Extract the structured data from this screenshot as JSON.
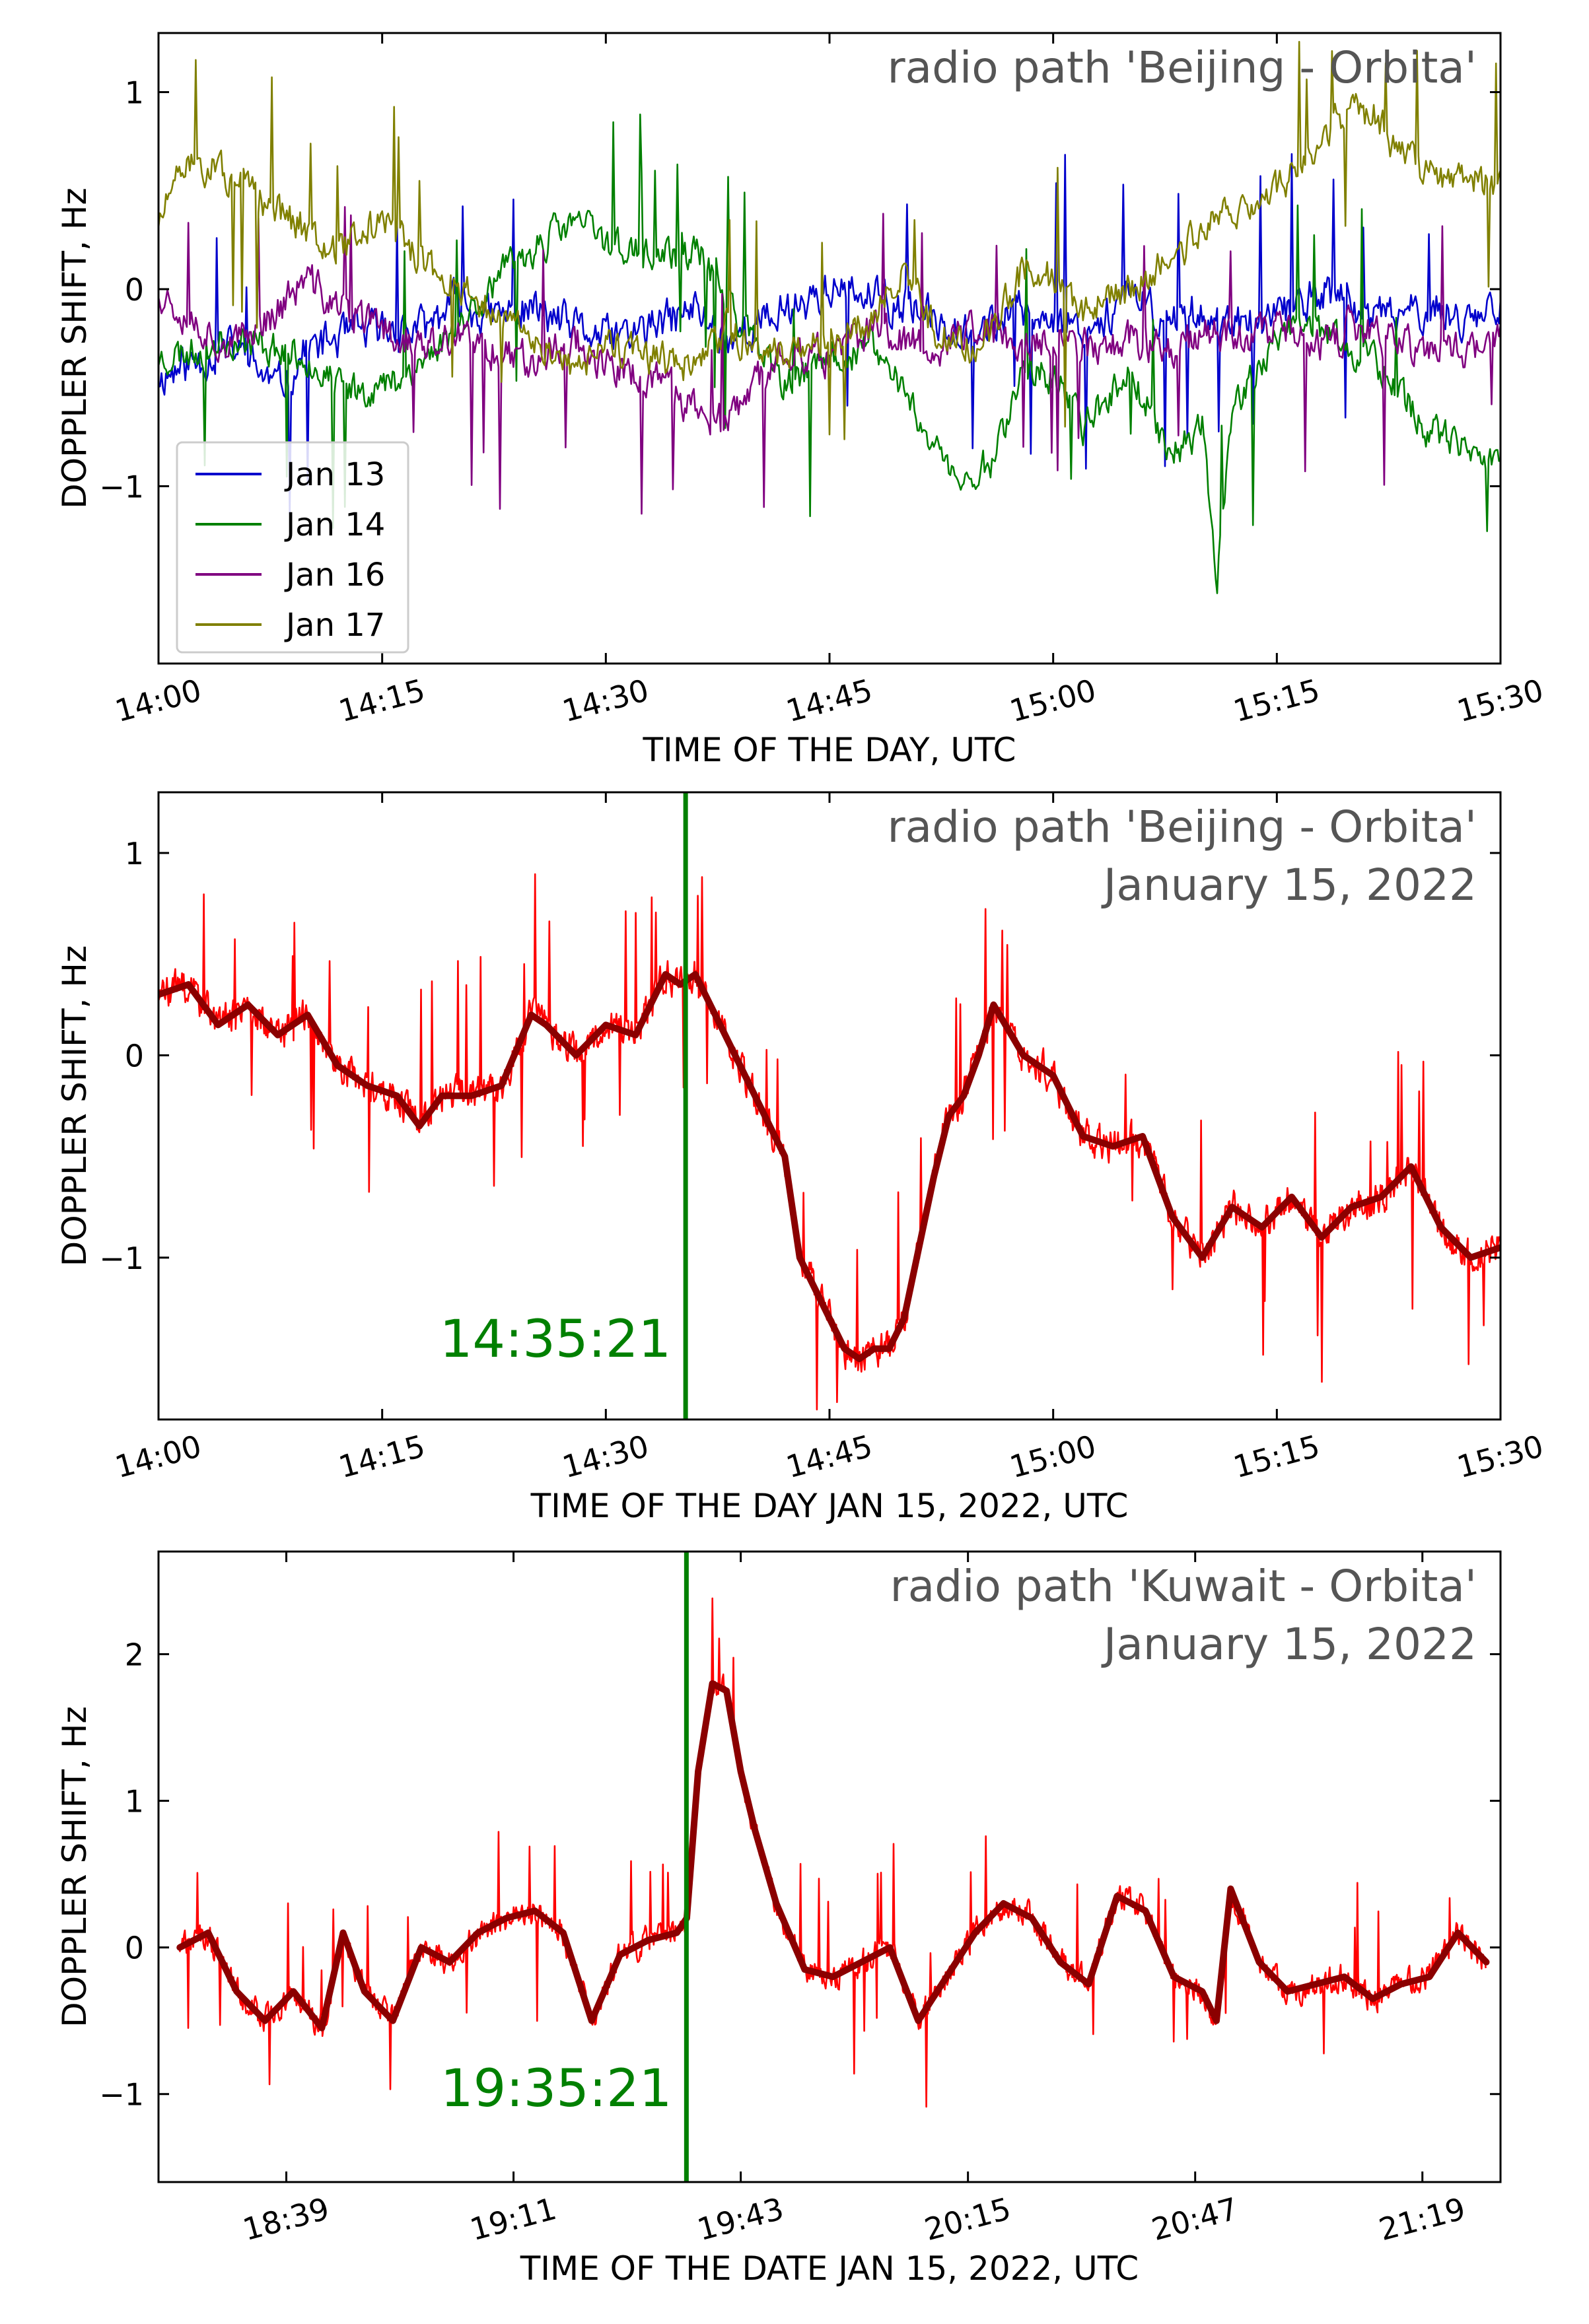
{
  "figure": {
    "colors": {
      "axis": "#000000",
      "annotation_text": "#555555",
      "raw_trace": "#ff0000",
      "smooth_trace": "#8b0000",
      "event_line": "#008000",
      "event_label": "#008000",
      "jan13": "#0000cc",
      "jan14": "#008000",
      "jan16": "#800080",
      "jan17": "#808000"
    }
  },
  "chart_data": [
    {
      "id": "panel1",
      "type": "line",
      "title": "radio path  'Beijing - Orbita'",
      "subtitle": "",
      "xlabel": "TIME OF THE DAY, UTC",
      "ylabel": "DOPPLER  SHIFT,  Hz",
      "xlim": [
        0,
        90
      ],
      "ylim": [
        -1.9,
        1.3
      ],
      "xticks": [
        0,
        15,
        30,
        45,
        60,
        75,
        90
      ],
      "xtick_labels": [
        "14:00",
        "14:15",
        "14:30",
        "14:45",
        "15:00",
        "15:15",
        "15:30"
      ],
      "yticks": [
        -1,
        0,
        1
      ],
      "ytick_labels": [
        "−1",
        "0",
        "1"
      ],
      "legend": {
        "position": "lower-left",
        "entries": [
          "Jan 13",
          "Jan 14",
          "Jan 16",
          "Jan 17"
        ]
      },
      "series": [
        {
          "name": "Jan 13",
          "color": "#0000cc",
          "x": [
            0,
            3,
            5,
            8,
            10,
            12,
            15,
            18,
            20,
            22,
            25,
            28,
            30,
            33,
            36,
            38,
            40,
            42,
            45,
            48,
            50,
            52,
            55,
            58,
            60,
            62,
            65,
            68,
            70,
            72,
            75,
            78,
            80,
            82,
            85,
            88,
            90
          ],
          "values": [
            -0.45,
            -0.35,
            -0.3,
            -0.5,
            -0.3,
            -0.25,
            -0.2,
            -0.2,
            -0.05,
            -0.15,
            -0.1,
            -0.2,
            -0.25,
            -0.2,
            -0.1,
            -0.25,
            -0.2,
            -0.1,
            0.0,
            -0.05,
            -0.1,
            -0.15,
            -0.2,
            -0.1,
            -0.15,
            -0.2,
            -0.05,
            -0.15,
            -0.1,
            -0.2,
            -0.15,
            0.0,
            -0.1,
            -0.15,
            -0.1,
            -0.15,
            -0.05
          ]
        },
        {
          "name": "Jan 14",
          "color": "#008000",
          "x": [
            0,
            3,
            5,
            8,
            10,
            12,
            15,
            18,
            20,
            22,
            25,
            28,
            30,
            33,
            36,
            38,
            40,
            42,
            45,
            48,
            50,
            52,
            54,
            56,
            58,
            60,
            62,
            65,
            68,
            70,
            71,
            72,
            75,
            78,
            80,
            82,
            85,
            88,
            90
          ],
          "values": [
            -0.35,
            -0.3,
            -0.25,
            -0.3,
            -0.35,
            -0.5,
            -0.5,
            -0.35,
            -0.2,
            0.0,
            0.2,
            0.35,
            0.25,
            0.15,
            0.2,
            0.0,
            -0.3,
            -0.5,
            -0.35,
            -0.3,
            -0.5,
            -0.8,
            -1.0,
            -0.85,
            -0.4,
            -0.45,
            -0.7,
            -0.4,
            -0.85,
            -0.7,
            -1.45,
            -0.6,
            -0.25,
            -0.2,
            -0.3,
            -0.4,
            -0.7,
            -0.85,
            -0.9
          ]
        },
        {
          "name": "Jan 16",
          "color": "#800080",
          "x": [
            0,
            3,
            5,
            8,
            10,
            12,
            15,
            18,
            20,
            22,
            25,
            28,
            30,
            33,
            36,
            38,
            40,
            42,
            45,
            48,
            50,
            52,
            55,
            58,
            60,
            62,
            65,
            68,
            70,
            72,
            75,
            78,
            80,
            82,
            85,
            88,
            90
          ],
          "values": [
            0.0,
            -0.2,
            -0.3,
            -0.1,
            0.05,
            -0.1,
            -0.2,
            -0.3,
            -0.25,
            -0.3,
            -0.35,
            -0.25,
            -0.4,
            -0.45,
            -0.6,
            -0.7,
            -0.5,
            -0.3,
            -0.35,
            -0.2,
            -0.25,
            -0.3,
            -0.2,
            -0.3,
            -0.25,
            -0.3,
            -0.25,
            -0.3,
            -0.2,
            -0.25,
            -0.2,
            -0.3,
            -0.2,
            -0.25,
            -0.3,
            -0.3,
            -0.25
          ]
        },
        {
          "name": "Jan 17",
          "color": "#808000",
          "x": [
            0,
            2,
            4,
            6,
            8,
            10,
            12,
            15,
            18,
            20,
            22,
            25,
            28,
            30,
            33,
            36,
            38,
            40,
            42,
            45,
            48,
            50,
            52,
            55,
            58,
            60,
            62,
            65,
            68,
            70,
            72,
            75,
            78,
            80,
            82,
            83,
            85,
            88,
            90
          ],
          "values": [
            0.35,
            0.65,
            0.6,
            0.5,
            0.4,
            0.3,
            0.2,
            0.35,
            0.1,
            0.05,
            -0.1,
            -0.25,
            -0.4,
            -0.3,
            -0.35,
            -0.4,
            -0.2,
            -0.3,
            -0.35,
            -0.25,
            -0.15,
            0.1,
            -0.2,
            -0.3,
            0.1,
            0.05,
            -0.1,
            0.0,
            0.15,
            0.3,
            0.4,
            0.5,
            0.75,
            0.95,
            0.85,
            0.7,
            0.6,
            0.55,
            0.5
          ]
        }
      ]
    },
    {
      "id": "panel2",
      "type": "line",
      "title": "radio path  'Beijing - Orbita'",
      "subtitle": "January 15, 2022",
      "xlabel": "TIME OF THE DAY JAN 15, 2022, UTC",
      "ylabel": "DOPPLER  SHIFT,  Hz",
      "xlim": [
        0,
        90
      ],
      "ylim": [
        -1.8,
        1.3
      ],
      "xticks": [
        0,
        15,
        30,
        45,
        60,
        75,
        90
      ],
      "xtick_labels": [
        "14:00",
        "14:15",
        "14:30",
        "14:45",
        "15:00",
        "15:15",
        "15:30"
      ],
      "yticks": [
        -1,
        0,
        1
      ],
      "ytick_labels": [
        "−1",
        "0",
        "1"
      ],
      "event": {
        "x": 35.35,
        "label": "14:35:21"
      },
      "series": [
        {
          "name": "smoothed",
          "color": "#8b0000",
          "x": [
            0,
            2,
            4,
            6,
            8,
            10,
            12,
            14,
            16,
            17.5,
            19,
            21,
            23,
            25,
            26,
            28,
            30,
            32,
            34,
            35,
            36,
            38,
            40,
            42,
            43,
            45,
            46,
            47,
            48,
            49,
            50,
            52,
            53,
            54,
            55,
            56,
            58,
            60,
            62,
            64,
            66,
            68,
            70,
            72,
            74,
            76,
            78,
            80,
            82,
            84,
            86,
            88,
            90
          ],
          "values": [
            0.3,
            0.35,
            0.15,
            0.25,
            0.1,
            0.2,
            -0.05,
            -0.15,
            -0.2,
            -0.35,
            -0.2,
            -0.2,
            -0.15,
            0.2,
            0.15,
            0.0,
            0.15,
            0.1,
            0.4,
            0.35,
            0.4,
            0.1,
            -0.2,
            -0.5,
            -1.0,
            -1.3,
            -1.45,
            -1.5,
            -1.45,
            -1.45,
            -1.3,
            -0.6,
            -0.3,
            -0.2,
            0.0,
            0.25,
            0.0,
            -0.1,
            -0.4,
            -0.45,
            -0.4,
            -0.8,
            -1.0,
            -0.75,
            -0.85,
            -0.7,
            -0.9,
            -0.75,
            -0.7,
            -0.55,
            -0.85,
            -1.0,
            -0.95
          ]
        }
      ]
    },
    {
      "id": "panel3",
      "type": "line",
      "title": "radio path  'Kuwait - Orbita'",
      "subtitle": "January 15, 2022",
      "xlabel": "TIME OF THE DATE JAN 15, 2022, UTC",
      "ylabel": "DOPPLER  SHIFT,  Hz",
      "xlim": [
        1101,
        1290
      ],
      "ylim": [
        -1.6,
        2.7
      ],
      "xticks": [
        1119,
        1151,
        1183,
        1215,
        1247,
        1279
      ],
      "xtick_labels": [
        "18:39",
        "19:11",
        "19:43",
        "20:15",
        "20:47",
        "21:19"
      ],
      "yticks": [
        -1,
        0,
        1,
        2
      ],
      "ytick_labels": [
        "−1",
        "0",
        "1",
        "2"
      ],
      "event": {
        "x": 1175.35,
        "label": "19:35:21"
      },
      "series": [
        {
          "name": "smoothed",
          "color": "#8b0000",
          "x": [
            1104,
            1108,
            1112,
            1116,
            1120,
            1124,
            1127,
            1130,
            1134,
            1138,
            1142,
            1146,
            1150,
            1154,
            1158,
            1162,
            1166,
            1170,
            1174,
            1175.4,
            1177,
            1179,
            1181,
            1183,
            1185,
            1188,
            1192,
            1196,
            1200,
            1204,
            1208,
            1212,
            1216,
            1220,
            1224,
            1228,
            1232,
            1236,
            1240,
            1244,
            1248,
            1250,
            1252,
            1256,
            1260,
            1264,
            1268,
            1272,
            1276,
            1280,
            1284,
            1288
          ],
          "values": [
            0.0,
            0.1,
            -0.3,
            -0.5,
            -0.3,
            -0.55,
            0.1,
            -0.3,
            -0.5,
            0.0,
            -0.1,
            0.1,
            0.2,
            0.25,
            0.1,
            -0.5,
            -0.05,
            0.05,
            0.1,
            0.2,
            1.2,
            1.8,
            1.75,
            1.2,
            0.8,
            0.3,
            -0.15,
            -0.2,
            -0.1,
            0.0,
            -0.5,
            -0.2,
            0.1,
            0.3,
            0.2,
            -0.1,
            -0.25,
            0.35,
            0.25,
            -0.2,
            -0.3,
            -0.5,
            0.4,
            -0.1,
            -0.3,
            -0.25,
            -0.2,
            -0.35,
            -0.25,
            -0.2,
            0.1,
            -0.1
          ]
        }
      ]
    }
  ]
}
